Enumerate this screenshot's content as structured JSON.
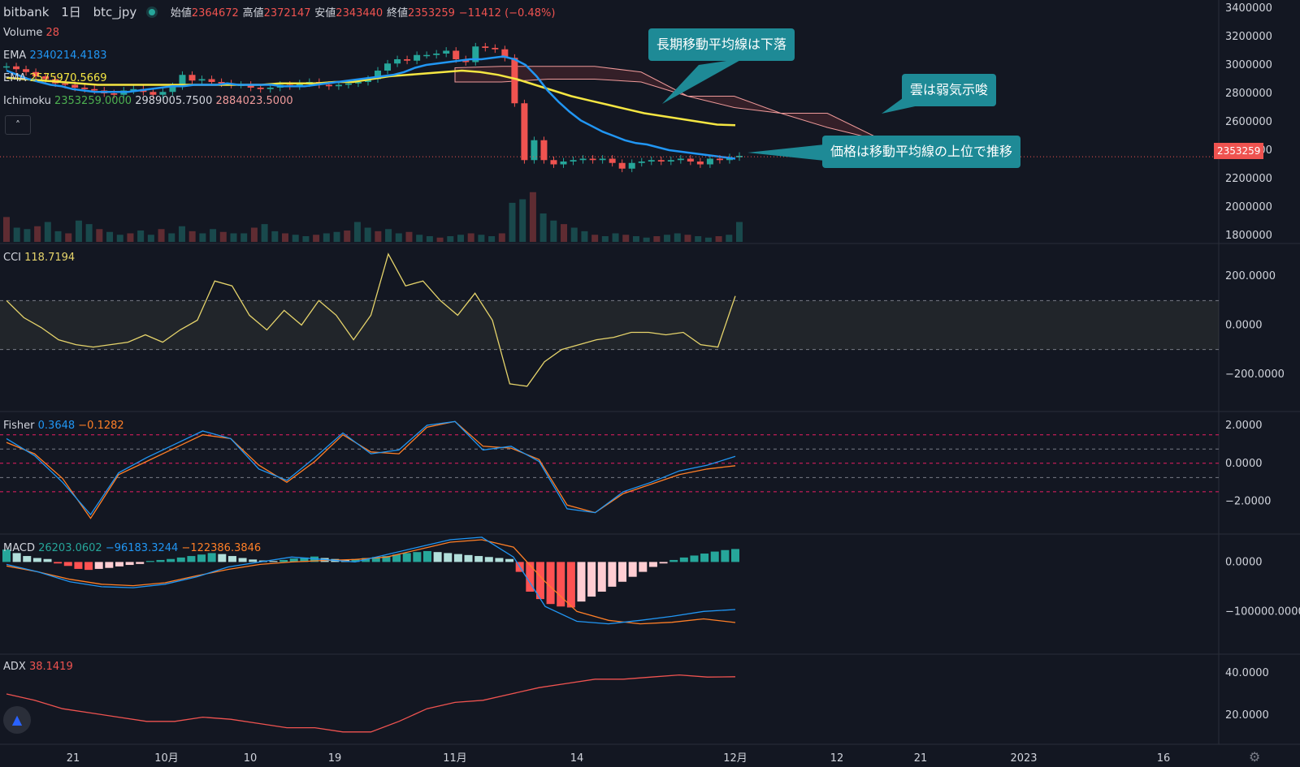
{
  "header": {
    "exchange": "bitbank",
    "interval": "1日",
    "symbol": "btc_jpy",
    "open_label": "始値",
    "open": "2364672",
    "high_label": "高値",
    "high": "2372147",
    "low_label": "安値",
    "low": "2343440",
    "close_label": "終値",
    "close": "2353259",
    "change": "−11412 (−0.48%)"
  },
  "legend": {
    "volume": {
      "name": "Volume",
      "value": "28"
    },
    "ema_short": {
      "name": "EMA",
      "value": "2340214.4183",
      "color": "#2196f3"
    },
    "ema_long": {
      "name": "EMA",
      "value": "2575970.5669",
      "color": "#f5e642"
    },
    "ichimoku": {
      "name": "Ichimoku",
      "v1": "2353259.0000",
      "v2": "2989005.7500",
      "v3": "2884023.5000"
    },
    "cci": {
      "name": "CCI",
      "value": "118.7194"
    },
    "fisher": {
      "name": "Fisher",
      "v1": "0.3648",
      "v2": "−0.1282"
    },
    "macd": {
      "name": "MACD",
      "v1": "26203.0602",
      "v2": "−96183.3244",
      "v3": "−122386.3846"
    },
    "adx": {
      "name": "ADX",
      "value": "38.1419"
    }
  },
  "callouts": {
    "ema_down": "長期移動平均線は下落",
    "cloud_weak": "雲は弱気示唆",
    "price_above": "価格は移動平均線の上位で推移"
  },
  "price_label": "2353259",
  "colors": {
    "up": "#26a69a",
    "down": "#ef5350",
    "background": "#131722",
    "callout": "#1e8a96"
  },
  "icons": {
    "collapse": "chevron-up-icon",
    "logo": "tradingview-logo-icon",
    "settings": "gear-icon"
  },
  "chart_data": [
    {
      "type": "candlestick",
      "pane": "price",
      "yticks": [
        "3400000",
        "3200000",
        "3000000",
        "2800000",
        "2600000",
        "2400000",
        "2200000",
        "2000000",
        "1800000"
      ],
      "ylim": [
        1800000,
        3400000
      ],
      "x_labels": [
        "21",
        "10月",
        "10",
        "19",
        "11月",
        "14",
        "12月",
        "12",
        "21",
        "2023",
        "16"
      ],
      "close": [
        2990000,
        2970000,
        2950000,
        2920000,
        2900000,
        2870000,
        2860000,
        2840000,
        2830000,
        2820000,
        2800000,
        2790000,
        2820000,
        2830000,
        2810000,
        2790000,
        2810000,
        2850000,
        2930000,
        2890000,
        2900000,
        2880000,
        2870000,
        2860000,
        2860000,
        2840000,
        2830000,
        2840000,
        2860000,
        2850000,
        2870000,
        2880000,
        2860000,
        2850000,
        2860000,
        2870000,
        2880000,
        2900000,
        2960000,
        3010000,
        3040000,
        3030000,
        3070000,
        3070000,
        3080000,
        3100000,
        3040000,
        3020000,
        3130000,
        3120000,
        3110000,
        3050000,
        2730000,
        2330000,
        2470000,
        2330000,
        2300000,
        2320000,
        2330000,
        2340000,
        2330000,
        2340000,
        2310000,
        2270000,
        2310000,
        2320000,
        2330000,
        2320000,
        2330000,
        2340000,
        2320000,
        2300000,
        2340000,
        2330000,
        2350000,
        2360000
      ],
      "ema_short": [
        2960000,
        2930000,
        2900000,
        2880000,
        2860000,
        2850000,
        2830000,
        2820000,
        2810000,
        2810000,
        2810000,
        2810000,
        2820000,
        2830000,
        2840000,
        2850000,
        2850000,
        2860000,
        2860000,
        2860000,
        2870000,
        2860000,
        2860000,
        2860000,
        2860000,
        2850000,
        2850000,
        2850000,
        2860000,
        2870000,
        2880000,
        2890000,
        2900000,
        2910000,
        2920000,
        2930000,
        2950000,
        2980000,
        3000000,
        3010000,
        3020000,
        3030000,
        3040000,
        3040000,
        3050000,
        3060000,
        3040000,
        3000000,
        2920000,
        2820000,
        2740000,
        2670000,
        2610000,
        2570000,
        2530000,
        2500000,
        2470000,
        2450000,
        2440000,
        2420000,
        2400000,
        2390000,
        2380000,
        2370000,
        2360000,
        2350000,
        2340000
      ],
      "ema_long": [
        2910000,
        2900000,
        2890000,
        2880000,
        2870000,
        2860000,
        2860000,
        2860000,
        2860000,
        2860000,
        2860000,
        2860000,
        2860000,
        2860000,
        2860000,
        2870000,
        2870000,
        2870000,
        2880000,
        2880000,
        2900000,
        2920000,
        2930000,
        2940000,
        2950000,
        2960000,
        2950000,
        2930000,
        2900000,
        2860000,
        2820000,
        2780000,
        2750000,
        2720000,
        2690000,
        2660000,
        2640000,
        2620000,
        2600000,
        2580000,
        2575970
      ]
    },
    {
      "type": "line",
      "pane": "cci",
      "name": "CCI",
      "yticks": [
        "200.0000",
        "0.0000",
        "−200.0000"
      ],
      "ylim": [
        -320,
        300
      ],
      "bands": [
        -100,
        100
      ],
      "values": [
        100,
        30,
        -10,
        -60,
        -80,
        -90,
        -80,
        -70,
        -40,
        -70,
        -20,
        20,
        180,
        160,
        40,
        -20,
        60,
        0,
        100,
        40,
        -60,
        40,
        290,
        160,
        180,
        100,
        40,
        130,
        20,
        -240,
        -250,
        -150,
        -100,
        -80,
        -60,
        -50,
        -30,
        -30,
        -40,
        -30,
        -80,
        -90,
        118.7194
      ]
    },
    {
      "type": "line",
      "pane": "fisher",
      "name": "Fisher",
      "yticks": [
        "2.0000",
        "0.0000",
        "−2.0000"
      ],
      "ylim": [
        -3.3,
        2.3
      ],
      "levels": [
        1.5,
        0.75,
        0,
        -0.75,
        -1.5
      ],
      "fisher": [
        1.3,
        0.4,
        -1.0,
        -2.7,
        -0.5,
        0.3,
        1.0,
        1.7,
        1.3,
        -0.3,
        -0.9,
        0.3,
        1.6,
        0.5,
        0.7,
        2.0,
        2.2,
        0.7,
        0.9,
        0.1,
        -2.4,
        -2.6,
        -1.5,
        -1.0,
        -0.4,
        -0.1,
        0.3648
      ],
      "trigger": [
        1.1,
        0.5,
        -0.8,
        -2.9,
        -0.6,
        0.1,
        0.8,
        1.5,
        1.3,
        -0.1,
        -1.0,
        0.1,
        1.5,
        0.6,
        0.5,
        1.9,
        2.2,
        0.9,
        0.8,
        0.2,
        -2.2,
        -2.6,
        -1.6,
        -1.1,
        -0.6,
        -0.3,
        -0.1282
      ]
    },
    {
      "type": "histogram+line",
      "pane": "macd",
      "name": "MACD",
      "yticks": [
        "0.0000",
        "−100000.0000"
      ],
      "ylim": [
        -170000,
        40000
      ],
      "histogram": [
        25000,
        18000,
        12000,
        8000,
        6000,
        -3000,
        -8000,
        -14000,
        -16000,
        -14000,
        -12000,
        -9000,
        -6000,
        -4000,
        2000,
        4000,
        6000,
        9000,
        12000,
        15000,
        18000,
        16000,
        12000,
        8000,
        5000,
        3000,
        2000,
        4000,
        7000,
        9000,
        11000,
        8000,
        6000,
        4000,
        6000,
        8000,
        10000,
        12000,
        15000,
        18000,
        20000,
        22000,
        20000,
        18000,
        16000,
        14000,
        12000,
        10000,
        8000,
        6000,
        -20000,
        -60000,
        -75000,
        -85000,
        -90000,
        -92000,
        -80000,
        -70000,
        -60000,
        -50000,
        -40000,
        -30000,
        -20000,
        -10000,
        -3000,
        4000,
        9000,
        13000,
        17000,
        21000,
        24000,
        26203
      ],
      "macd": [
        -5000,
        -20000,
        -40000,
        -50000,
        -52000,
        -45000,
        -30000,
        -10000,
        0,
        10000,
        5000,
        0,
        15000,
        30000,
        45000,
        50000,
        10000,
        -90000,
        -120000,
        -125000,
        -118000,
        -110000,
        -100000,
        -96183
      ],
      "signal": [
        -8000,
        -20000,
        -35000,
        -45000,
        -48000,
        -42000,
        -28000,
        -15000,
        -5000,
        0,
        3000,
        5000,
        10000,
        25000,
        40000,
        45000,
        30000,
        -40000,
        -100000,
        -118000,
        -125000,
        -122000,
        -115000,
        -122386
      ]
    },
    {
      "type": "line",
      "pane": "adx",
      "name": "ADX",
      "yticks": [
        "40.0000",
        "20.0000"
      ],
      "ylim": [
        10,
        45
      ],
      "values": [
        30,
        27,
        23,
        21,
        19,
        17,
        17,
        19,
        18,
        16,
        14,
        14,
        12,
        12,
        17,
        23,
        26,
        27,
        30,
        33,
        35,
        37,
        37,
        38,
        39,
        38,
        38.1419
      ]
    },
    {
      "type": "bar",
      "pane": "volume",
      "name": "Volume",
      "values": [
        35,
        20,
        18,
        22,
        28,
        15,
        12,
        30,
        25,
        18,
        14,
        10,
        12,
        16,
        10,
        18,
        12,
        22,
        15,
        12,
        18,
        14,
        12,
        12,
        20,
        25,
        15,
        12,
        10,
        8,
        10,
        12,
        14,
        16,
        28,
        20,
        15,
        18,
        12,
        14,
        10,
        8,
        6,
        8,
        10,
        12,
        10,
        8,
        12,
        55,
        60,
        70,
        40,
        30,
        25,
        20,
        15,
        10,
        8,
        12,
        10,
        8,
        6,
        8,
        10,
        12,
        10,
        8,
        6,
        8,
        10,
        28
      ]
    }
  ]
}
